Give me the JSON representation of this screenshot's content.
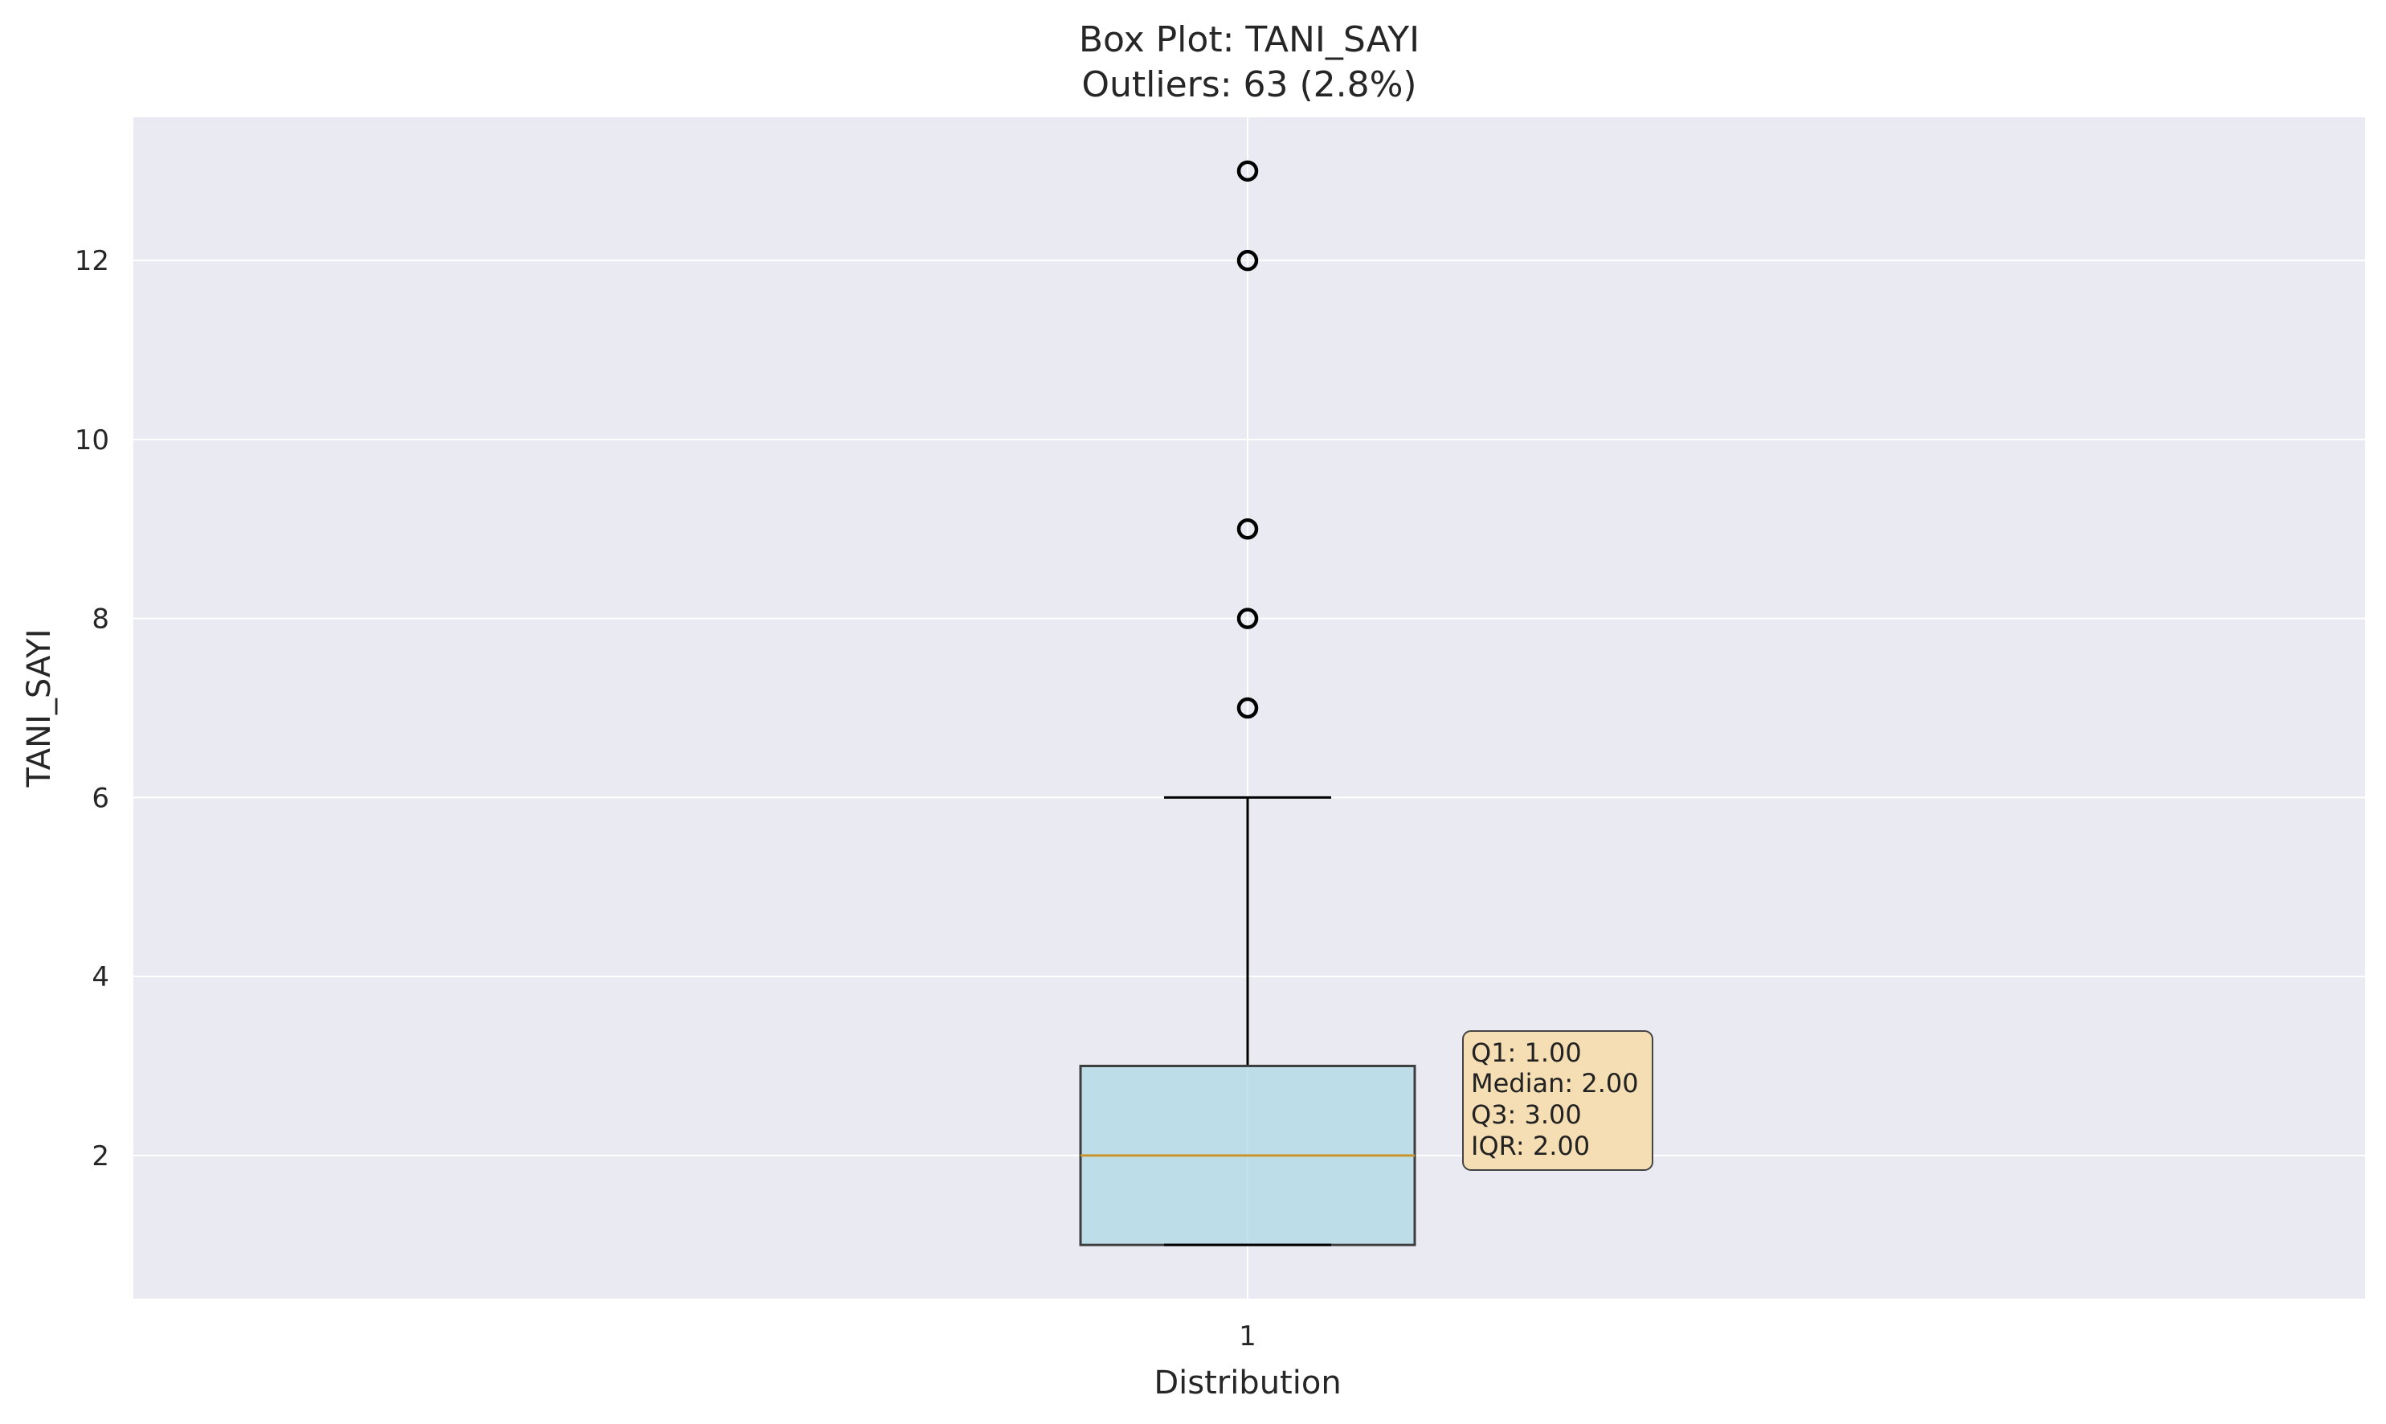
{
  "chart_data": {
    "type": "box",
    "title": "Box Plot: TANI_SAYI",
    "subtitle": "Outliers: 63 (2.8%)",
    "xlabel": "Distribution",
    "ylabel": "TANI_SAYI",
    "categories": [
      "1"
    ],
    "ylim": [
      0.4,
      13.6
    ],
    "yticks": [
      2,
      4,
      6,
      8,
      10,
      12
    ],
    "ytick_labels": [
      "2",
      "4",
      "6",
      "8",
      "10",
      "12"
    ],
    "box": {
      "whisker_low": 1,
      "q1": 1,
      "median": 2,
      "q3": 3,
      "whisker_high": 6
    },
    "outliers": [
      7,
      8,
      9,
      12,
      13
    ],
    "stats_box": {
      "lines": [
        "Q1: 1.00",
        "Median: 2.00",
        "Q3: 3.00",
        "IQR: 2.00"
      ]
    },
    "grid": true,
    "colors": {
      "plot_background": "#eaeaf2",
      "grid": "#ffffff",
      "box_fill": "#add8e6",
      "box_edge": "#3d3d3d",
      "median": "#c8962d",
      "whisker": "#000000",
      "outlier_edge": "#000000",
      "stats_fill": "#f5deb3",
      "stats_edge": "#444444"
    }
  }
}
